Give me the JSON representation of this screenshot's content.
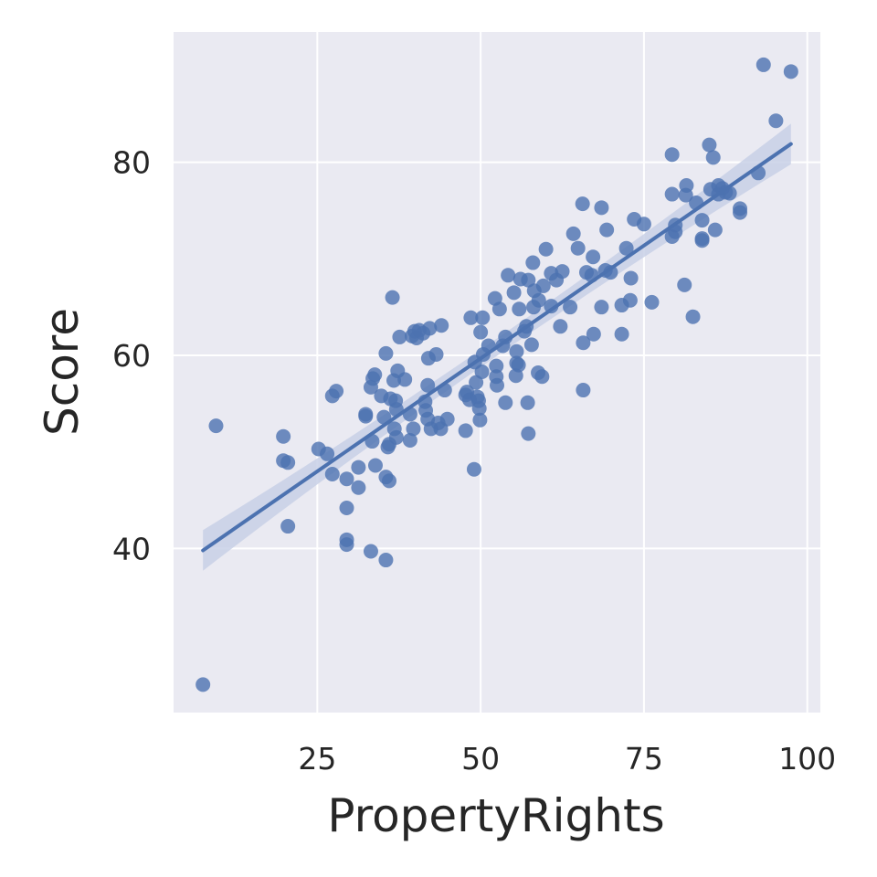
{
  "chart_data": {
    "type": "scatter",
    "title": "",
    "xlabel": "PropertyRights",
    "ylabel": "Score",
    "xlim": [
      3,
      102
    ],
    "ylim": [
      23,
      93.5
    ],
    "xticks": [
      25,
      50,
      75,
      100
    ],
    "yticks": [
      40,
      60,
      80
    ],
    "grid": true,
    "legend": "none",
    "colors": {
      "background": "#eaeaf2",
      "grid": "#ffffff",
      "points": "#4c72b0",
      "band": "#c8d0e6"
    },
    "regression": {
      "x_start": 7.5,
      "y_start": 39.8,
      "x_end": 97.5,
      "y_end": 81.9
    },
    "points": [
      [
        7.5,
        25.9
      ],
      [
        9.5,
        52.7
      ],
      [
        19.8,
        51.6
      ],
      [
        19.8,
        49.1
      ],
      [
        20.5,
        48.9
      ],
      [
        20.5,
        42.3
      ],
      [
        25.2,
        50.3
      ],
      [
        26.5,
        49.8
      ],
      [
        27.3,
        47.7
      ],
      [
        27.3,
        55.8
      ],
      [
        27.9,
        56.3
      ],
      [
        29.5,
        47.2
      ],
      [
        29.5,
        44.2
      ],
      [
        29.5,
        40.9
      ],
      [
        29.5,
        40.4
      ],
      [
        31.3,
        48.4
      ],
      [
        31.3,
        46.3
      ],
      [
        32.4,
        53.9
      ],
      [
        32.4,
        53.7
      ],
      [
        33.2,
        56.7
      ],
      [
        33.2,
        39.7
      ],
      [
        33.4,
        51.1
      ],
      [
        33.5,
        57.6
      ],
      [
        33.8,
        58.0
      ],
      [
        33.9,
        48.6
      ],
      [
        34.8,
        55.8
      ],
      [
        35.2,
        53.6
      ],
      [
        35.5,
        60.2
      ],
      [
        35.5,
        47.4
      ],
      [
        35.5,
        38.8
      ],
      [
        35.8,
        50.5
      ],
      [
        36.0,
        47.0
      ],
      [
        36.0,
        50.8
      ],
      [
        36.2,
        55.5
      ],
      [
        36.5,
        66.0
      ],
      [
        36.7,
        57.4
      ],
      [
        36.8,
        52.4
      ],
      [
        37.0,
        55.3
      ],
      [
        37.1,
        51.5
      ],
      [
        37.1,
        54.4
      ],
      [
        37.3,
        58.4
      ],
      [
        37.6,
        61.9
      ],
      [
        38.4,
        57.5
      ],
      [
        39.2,
        53.9
      ],
      [
        39.2,
        51.2
      ],
      [
        39.5,
        62.0
      ],
      [
        39.7,
        52.4
      ],
      [
        39.9,
        62.5
      ],
      [
        40.2,
        61.8
      ],
      [
        40.6,
        62.6
      ],
      [
        41.2,
        62.3
      ],
      [
        41.5,
        55.2
      ],
      [
        41.6,
        54.3
      ],
      [
        41.9,
        53.4
      ],
      [
        41.9,
        56.9
      ],
      [
        42.0,
        59.7
      ],
      [
        42.2,
        62.8
      ],
      [
        42.4,
        52.4
      ],
      [
        43.2,
        60.1
      ],
      [
        43.5,
        53.0
      ],
      [
        43.9,
        52.4
      ],
      [
        44.0,
        63.1
      ],
      [
        44.5,
        56.4
      ],
      [
        44.9,
        53.4
      ],
      [
        47.7,
        55.9
      ],
      [
        47.7,
        52.2
      ],
      [
        47.9,
        56.2
      ],
      [
        48.3,
        55.4
      ],
      [
        48.5,
        63.9
      ],
      [
        49.0,
        48.2
      ],
      [
        49.1,
        59.3
      ],
      [
        49.3,
        57.2
      ],
      [
        49.5,
        55.7
      ],
      [
        49.7,
        55.3
      ],
      [
        49.8,
        54.5
      ],
      [
        49.9,
        53.3
      ],
      [
        50.0,
        62.4
      ],
      [
        50.2,
        58.3
      ],
      [
        50.3,
        63.9
      ],
      [
        50.4,
        60.1
      ],
      [
        51.2,
        61.0
      ],
      [
        52.2,
        65.9
      ],
      [
        52.4,
        57.8
      ],
      [
        52.4,
        58.9
      ],
      [
        52.5,
        56.9
      ],
      [
        52.9,
        64.8
      ],
      [
        53.4,
        61.0
      ],
      [
        53.8,
        55.1
      ],
      [
        53.8,
        61.9
      ],
      [
        54.2,
        68.3
      ],
      [
        55.1,
        66.5
      ],
      [
        55.4,
        57.9
      ],
      [
        55.5,
        59.2
      ],
      [
        55.5,
        60.4
      ],
      [
        55.8,
        59.0
      ],
      [
        55.9,
        64.8
      ],
      [
        56.1,
        67.9
      ],
      [
        56.7,
        62.5
      ],
      [
        57.0,
        63.0
      ],
      [
        57.2,
        55.1
      ],
      [
        57.3,
        51.9
      ],
      [
        57.3,
        67.8
      ],
      [
        57.8,
        61.1
      ],
      [
        58.0,
        69.6
      ],
      [
        58.1,
        65.0
      ],
      [
        58.2,
        66.7
      ],
      [
        58.8,
        58.2
      ],
      [
        58.9,
        65.7
      ],
      [
        59.4,
        57.8
      ],
      [
        59.6,
        67.2
      ],
      [
        60.0,
        71.0
      ],
      [
        60.8,
        65.1
      ],
      [
        60.8,
        68.5
      ],
      [
        61.6,
        67.8
      ],
      [
        62.2,
        63.0
      ],
      [
        62.5,
        68.7
      ],
      [
        63.7,
        65.0
      ],
      [
        64.2,
        72.6
      ],
      [
        64.9,
        71.1
      ],
      [
        65.6,
        75.7
      ],
      [
        65.7,
        56.4
      ],
      [
        65.7,
        61.3
      ],
      [
        66.2,
        68.6
      ],
      [
        67.0,
        68.3
      ],
      [
        67.2,
        70.2
      ],
      [
        67.3,
        62.2
      ],
      [
        68.5,
        65.0
      ],
      [
        68.5,
        75.3
      ],
      [
        69.1,
        68.8
      ],
      [
        69.3,
        73.0
      ],
      [
        69.9,
        68.6
      ],
      [
        71.6,
        65.2
      ],
      [
        71.6,
        62.2
      ],
      [
        72.3,
        71.1
      ],
      [
        72.9,
        65.7
      ],
      [
        73.0,
        68.0
      ],
      [
        73.5,
        74.1
      ],
      [
        75.0,
        73.6
      ],
      [
        76.2,
        65.5
      ],
      [
        79.3,
        80.8
      ],
      [
        79.3,
        76.7
      ],
      [
        79.3,
        72.3
      ],
      [
        79.8,
        72.8
      ],
      [
        79.8,
        73.5
      ],
      [
        81.2,
        67.3
      ],
      [
        81.4,
        76.6
      ],
      [
        81.5,
        77.6
      ],
      [
        82.5,
        64.0
      ],
      [
        83.0,
        75.8
      ],
      [
        83.9,
        72.1
      ],
      [
        83.9,
        74.0
      ],
      [
        83.9,
        71.9
      ],
      [
        85.0,
        81.8
      ],
      [
        85.2,
        77.2
      ],
      [
        85.6,
        80.5
      ],
      [
        85.9,
        73.0
      ],
      [
        86.4,
        76.7
      ],
      [
        86.4,
        77.6
      ],
      [
        87.0,
        77.3
      ],
      [
        87.5,
        76.9
      ],
      [
        88.1,
        76.8
      ],
      [
        89.7,
        74.8
      ],
      [
        89.7,
        75.2
      ],
      [
        92.5,
        78.9
      ],
      [
        93.3,
        90.1
      ],
      [
        95.2,
        84.3
      ],
      [
        97.5,
        89.4
      ]
    ],
    "x_tick_labels": [
      "25",
      "50",
      "75",
      "100"
    ],
    "y_tick_labels": [
      "40",
      "60",
      "80"
    ]
  }
}
